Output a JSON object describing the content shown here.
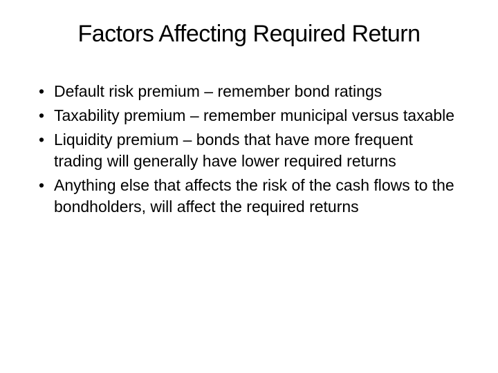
{
  "slide": {
    "title": "Factors Affecting Required Return",
    "title_fontsize": 34,
    "title_color": "#000000",
    "background_color": "#ffffff",
    "text_color": "#000000",
    "bullet_fontsize": 23,
    "font_family": "Arial",
    "bullets": [
      "Default risk premium – remember bond ratings",
      "Taxability premium – remember municipal versus taxable",
      "Liquidity premium – bonds that have more frequent trading will generally have lower required returns",
      "Anything else that affects the risk of the cash flows to the bondholders, will affect the required returns"
    ]
  }
}
